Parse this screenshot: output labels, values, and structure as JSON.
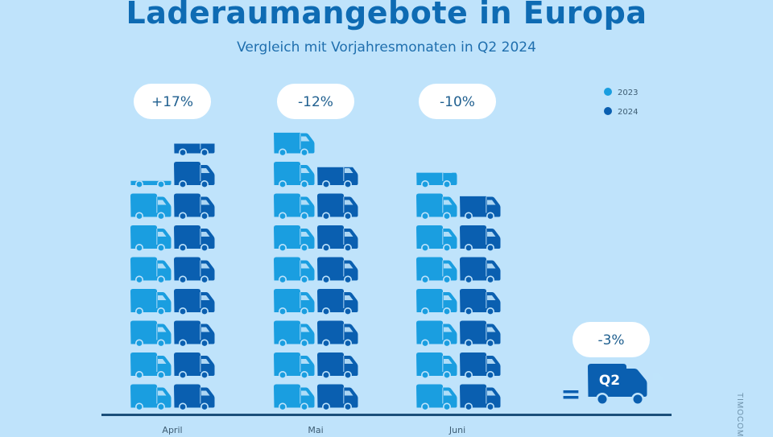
{
  "title": "Laderaumangebote in Europa",
  "subtitle": "Vergleich mit Vorjahresmonaten in Q2 2024",
  "watermark": "TIMOCOM",
  "colors": {
    "background": "#bfe3fb",
    "series_2023": "#1a9ee0",
    "series_2024": "#0a5fb0",
    "title": "#0e6bb3",
    "axis": "#1b4f7a",
    "bubble": "#ffffff"
  },
  "chart_data": {
    "type": "bar",
    "categories": [
      "April",
      "Mai",
      "Juni"
    ],
    "series": [
      {
        "name": "2023",
        "values": [
          7.3,
          8.9,
          7.6
        ]
      },
      {
        "name": "2024",
        "values": [
          8.5,
          7.8,
          6.9
        ]
      }
    ],
    "change_labels": [
      "+17%",
      "-12%",
      "-10%"
    ],
    "summary": {
      "label": "-3%",
      "icon_text": "Q2",
      "equals": "="
    },
    "legend": [
      "2023",
      "2024"
    ],
    "legend_position": "top-right",
    "unit_icon": "truck-icon",
    "grid": false
  }
}
